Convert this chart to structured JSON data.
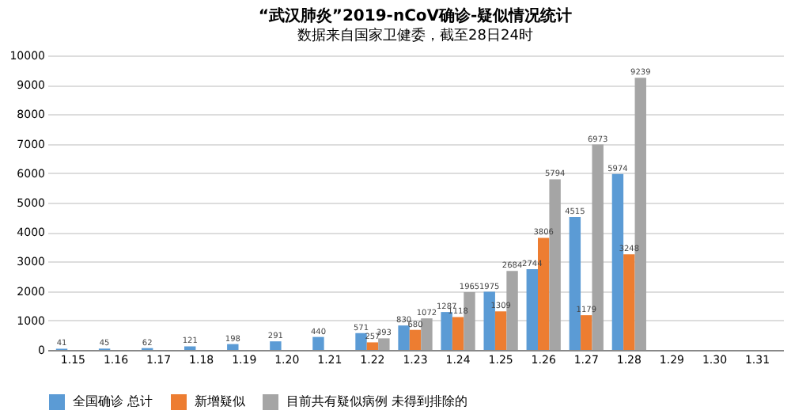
{
  "chart_data": {
    "type": "bar",
    "title": "“武汉肺炎”2019-nCoV确诊-疑似情况统计",
    "subtitle": "数据来自国家卫健委，截至28日24时",
    "categories": [
      "1.15",
      "1.16",
      "1.17",
      "1.18",
      "1.19",
      "1.20",
      "1.21",
      "1.22",
      "1.23",
      "1.24",
      "1.25",
      "1.26",
      "1.27",
      "1.28",
      "1.29",
      "1.30",
      "1.31"
    ],
    "series": [
      {
        "name": "全国确诊 总计",
        "color": "#5b9bd5",
        "values": [
          41,
          45,
          62,
          121,
          198,
          291,
          440,
          571,
          830,
          1287,
          1975,
          2744,
          4515,
          5974,
          null,
          null,
          null
        ]
      },
      {
        "name": "新增疑似",
        "color": "#ed7d31",
        "values": [
          null,
          null,
          null,
          null,
          null,
          null,
          null,
          257,
          680,
          1118,
          1309,
          3806,
          1179,
          3248,
          null,
          null,
          null
        ]
      },
      {
        "name": "目前共有疑似病例 未得到排除的",
        "color": "#a5a5a5",
        "values": [
          null,
          null,
          null,
          null,
          null,
          null,
          null,
          393,
          1072,
          1965,
          2684,
          5794,
          6973,
          9239,
          null,
          null,
          null
        ]
      }
    ],
    "ylim": [
      0,
      10000
    ],
    "yticks": [
      0,
      1000,
      2000,
      3000,
      4000,
      5000,
      6000,
      7000,
      8000,
      9000,
      10000
    ],
    "grid": "y",
    "legend": "bottom",
    "data_labels": true
  }
}
